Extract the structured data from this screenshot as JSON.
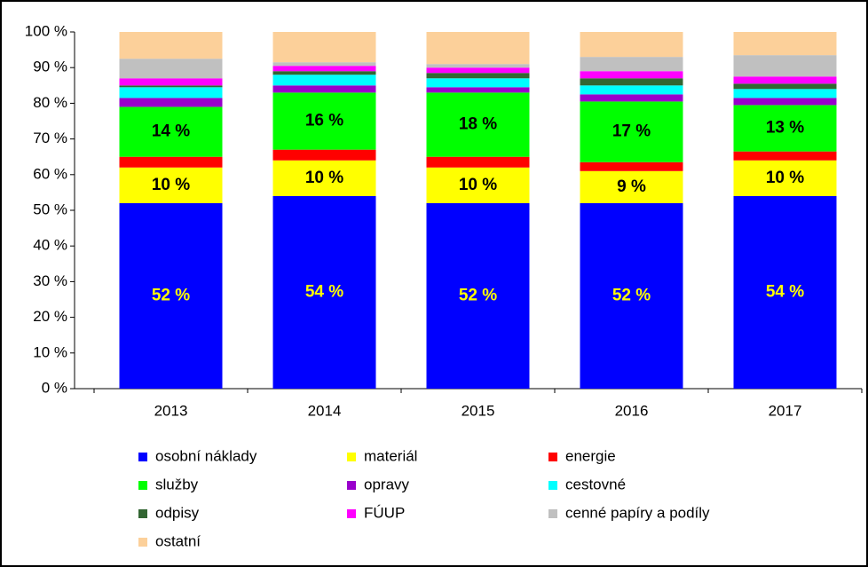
{
  "chart_data": {
    "type": "stacked_bar",
    "categories": [
      "2013",
      "2014",
      "2015",
      "2016",
      "2017"
    ],
    "ylim": [
      0,
      100
    ],
    "yticks": [
      {
        "value": 0,
        "label": "0 %"
      },
      {
        "value": 10,
        "label": "10 %"
      },
      {
        "value": 20,
        "label": "20 %"
      },
      {
        "value": 30,
        "label": "30 %"
      },
      {
        "value": 40,
        "label": "40 %"
      },
      {
        "value": 50,
        "label": "50 %"
      },
      {
        "value": 60,
        "label": "60 %"
      },
      {
        "value": 70,
        "label": "70 %"
      },
      {
        "value": 80,
        "label": "80 %"
      },
      {
        "value": 90,
        "label": "90 %"
      },
      {
        "value": 100,
        "label": "100 %"
      }
    ],
    "series": [
      {
        "name": "osobní náklady",
        "color": "#0000ff",
        "label_color": "#ffff00",
        "values": [
          52,
          54,
          52,
          52,
          54
        ],
        "value_labels": [
          "52 %",
          "54 %",
          "52 %",
          "52 %",
          "54 %"
        ]
      },
      {
        "name": "materiál",
        "color": "#ffff00",
        "label_color": "#000000",
        "values": [
          10,
          10,
          10,
          9,
          10
        ],
        "value_labels": [
          "10 %",
          "10 %",
          "10 %",
          "9 %",
          "10 %"
        ]
      },
      {
        "name": "energie",
        "color": "#ff0000",
        "values": [
          3,
          3,
          3,
          2.5,
          2.5
        ]
      },
      {
        "name": "služby",
        "color": "#00ff00",
        "label_color": "#000000",
        "values": [
          14,
          16,
          18,
          17,
          13
        ],
        "value_labels": [
          "14 %",
          "16 %",
          "18 %",
          "17 %",
          "13 %"
        ]
      },
      {
        "name": "opravy",
        "color": "#9900cc",
        "values": [
          2.5,
          2,
          1.5,
          2,
          2
        ]
      },
      {
        "name": "cestovné",
        "color": "#00ffff",
        "values": [
          3,
          3,
          2.5,
          2.5,
          2.5
        ]
      },
      {
        "name": "odpisy",
        "color": "#336633",
        "values": [
          0.5,
          1,
          1.5,
          2,
          1.5
        ]
      },
      {
        "name": "FÚUP",
        "color": "#ff00ff",
        "values": [
          2,
          1.5,
          1.5,
          2,
          2
        ]
      },
      {
        "name": "cenné papíry a podíly",
        "color": "#c0c0c0",
        "values": [
          5.5,
          1,
          1,
          4,
          6
        ]
      },
      {
        "name": "ostatní",
        "color": "#fcd09a",
        "values": [
          7.5,
          8.5,
          9,
          7,
          6.5
        ]
      }
    ]
  }
}
